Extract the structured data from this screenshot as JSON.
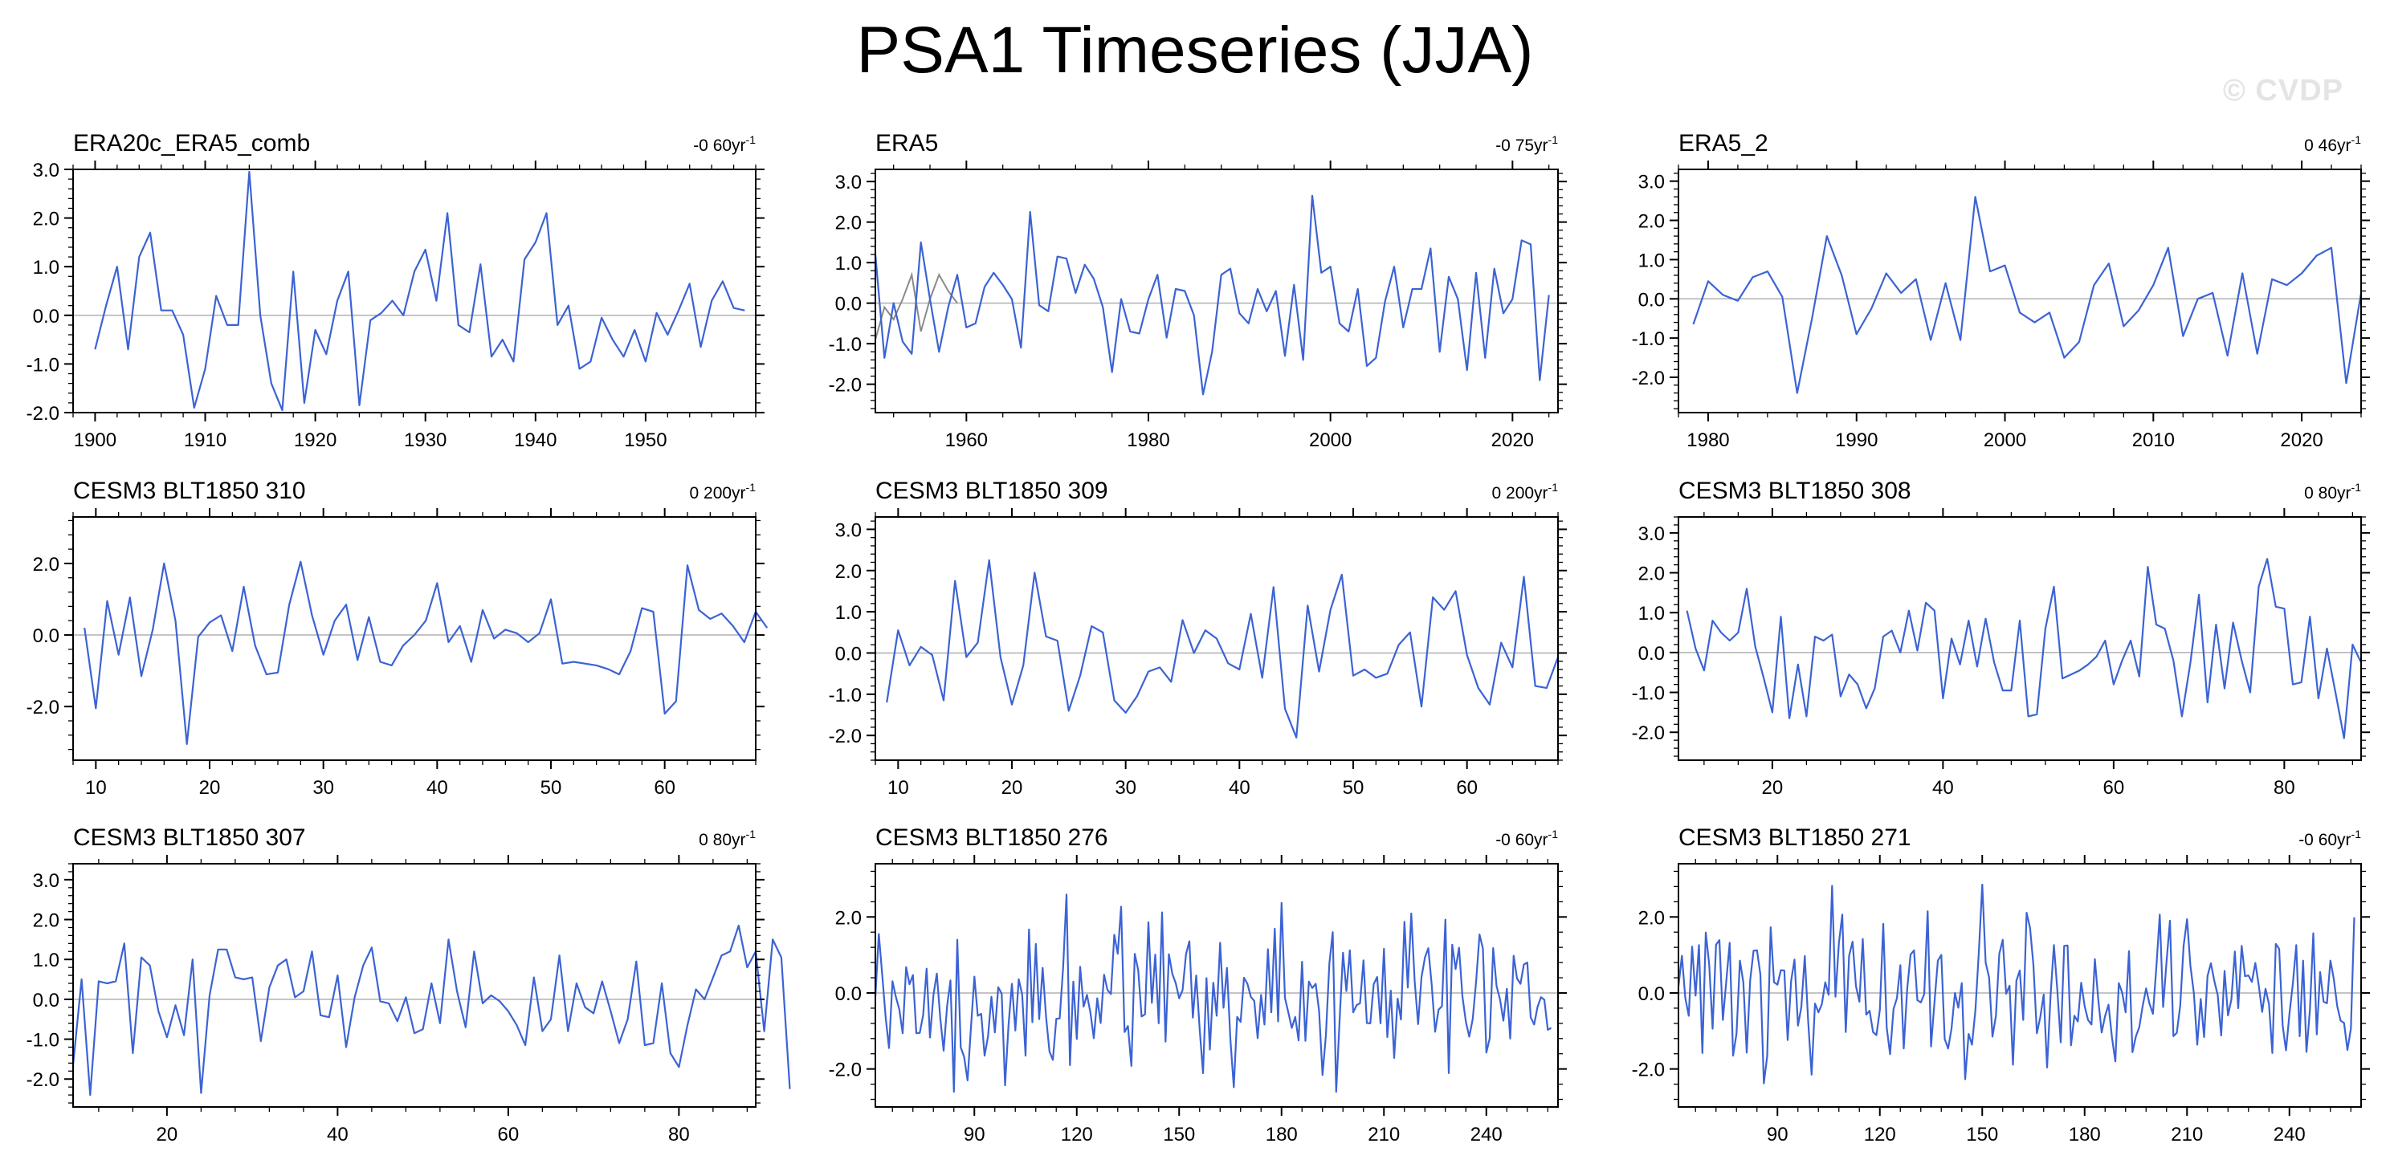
{
  "page": {
    "title": "PSA1 Timeseries (JJA)",
    "watermark": "© CVDP"
  },
  "colors": {
    "series": "#3c63d4",
    "observed_overlay": "#8a8a8a",
    "zero_line": "#b0b0b0",
    "axis": "#000000"
  },
  "chart_data": [
    {
      "type": "line",
      "title": "ERA20c_ERA5_comb",
      "trend_value": "-0 60",
      "trend_unit": "yr",
      "trend_exp": "-1",
      "xlim": [
        1898,
        1960
      ],
      "ylim": [
        -2.0,
        3.0
      ],
      "xticks": [
        1900,
        1910,
        1920,
        1930,
        1940,
        1950
      ],
      "yticks": [
        -2.0,
        -1.0,
        0.0,
        1.0,
        2.0,
        3.0
      ],
      "ytick_labels": [
        "-2.0",
        "-1.0",
        "0.0",
        "1.0",
        "2.0",
        "3.0"
      ],
      "x_start": 1900,
      "values": [
        -0.7,
        0.2,
        1.0,
        -0.7,
        1.2,
        1.7,
        0.1,
        0.1,
        -0.4,
        -1.9,
        -1.1,
        0.4,
        -0.2,
        -0.2,
        2.95,
        0.0,
        -1.4,
        -1.95,
        0.9,
        -1.8,
        -0.3,
        -0.8,
        0.3,
        0.9,
        -1.85,
        -0.1,
        0.05,
        0.3,
        0.0,
        0.9,
        1.35,
        0.3,
        2.1,
        -0.2,
        -0.35,
        1.05,
        -0.85,
        -0.5,
        -0.95,
        1.15,
        1.5,
        2.1,
        -0.2,
        0.2,
        -1.1,
        -0.95,
        -0.05,
        -0.5,
        -0.85,
        -0.3,
        -0.95,
        0.05,
        -0.4,
        0.1,
        0.65,
        -0.65,
        0.3,
        0.7,
        0.15,
        0.1
      ]
    },
    {
      "type": "line",
      "title": "ERA5",
      "trend_value": "-0 75",
      "trend_unit": "yr",
      "trend_exp": "-1",
      "xlim": [
        1950,
        2025
      ],
      "ylim": [
        -2.7,
        3.3
      ],
      "xticks": [
        1960,
        1980,
        2000,
        2020
      ],
      "yticks": [
        -2.0,
        -1.0,
        0.0,
        1.0,
        2.0,
        3.0
      ],
      "ytick_labels": [
        "-2.0",
        "-1.0",
        "0.0",
        "1.0",
        "2.0",
        "3.0"
      ],
      "x_start": 1950,
      "values": [
        1.2,
        -1.35,
        0.0,
        -0.95,
        -1.25,
        1.5,
        0.1,
        -1.2,
        -0.1,
        0.7,
        -0.6,
        -0.5,
        0.4,
        0.75,
        0.45,
        0.1,
        -1.1,
        2.25,
        -0.05,
        -0.2,
        1.15,
        1.1,
        0.25,
        0.95,
        0.6,
        -0.1,
        -1.7,
        0.1,
        -0.7,
        -0.75,
        0.1,
        0.7,
        -0.85,
        0.35,
        0.3,
        -0.3,
        -2.25,
        -1.2,
        0.7,
        0.85,
        -0.25,
        -0.5,
        0.35,
        -0.2,
        0.3,
        -1.3,
        0.45,
        -1.4,
        2.65,
        0.75,
        0.9,
        -0.5,
        -0.7,
        0.35,
        -1.55,
        -1.35,
        0.05,
        0.9,
        -0.6,
        0.35,
        0.35,
        1.35,
        -1.2,
        0.65,
        0.1,
        -1.65,
        0.75,
        -1.35,
        0.85,
        -0.25,
        0.1,
        1.55,
        1.45,
        -1.9,
        0.2
      ],
      "overlay_x_start": 1950,
      "overlay_values": [
        -0.9,
        -0.1,
        -0.4,
        0.1,
        0.7,
        -0.7,
        0.1,
        0.7,
        0.3,
        0.0
      ]
    },
    {
      "type": "line",
      "title": "ERA5_2",
      "trend_value": "0 46",
      "trend_unit": "yr",
      "trend_exp": "-1",
      "xlim": [
        1978,
        2024
      ],
      "ylim": [
        -2.9,
        3.3
      ],
      "xticks": [
        1980,
        1990,
        2000,
        2010,
        2020
      ],
      "yticks": [
        -2.0,
        -1.0,
        0.0,
        1.0,
        2.0,
        3.0
      ],
      "ytick_labels": [
        "-2.0",
        "-1.0",
        "0.0",
        "1.0",
        "2.0",
        "3.0"
      ],
      "x_start": 1979,
      "values": [
        -0.65,
        0.45,
        0.1,
        -0.05,
        0.55,
        0.7,
        0.05,
        -2.4,
        -0.5,
        1.6,
        0.6,
        -0.9,
        -0.25,
        0.65,
        0.15,
        0.5,
        -1.05,
        0.4,
        -1.05,
        2.6,
        0.7,
        0.85,
        -0.35,
        -0.6,
        -0.35,
        -1.5,
        -1.1,
        0.35,
        0.9,
        -0.7,
        -0.3,
        0.35,
        1.3,
        -0.95,
        0.0,
        0.15,
        -1.45,
        0.65,
        -1.4,
        0.5,
        0.35,
        0.65,
        1.1,
        1.3,
        -2.15,
        0.15
      ]
    },
    {
      "type": "line",
      "title": "CESM3 BLT1850 310",
      "trend_value": "0 200",
      "trend_unit": "yr",
      "trend_exp": "-1",
      "xlim": [
        8,
        68
      ],
      "ylim": [
        -3.5,
        3.3
      ],
      "xticks": [
        10,
        20,
        30,
        40,
        50,
        60
      ],
      "yticks": [
        -2.0,
        0.0,
        2.0
      ],
      "ytick_labels": [
        "-2.0",
        "0.0",
        "2.0"
      ],
      "x_start": 9,
      "values": [
        0.2,
        -2.05,
        0.95,
        -0.55,
        1.05,
        -1.15,
        0.15,
        2.0,
        0.4,
        -3.05,
        -0.05,
        0.35,
        0.55,
        -0.45,
        1.35,
        -0.3,
        -1.1,
        -1.05,
        0.85,
        2.05,
        0.55,
        -0.55,
        0.4,
        0.85,
        -0.7,
        0.5,
        -0.75,
        -0.85,
        -0.3,
        0.0,
        0.4,
        1.45,
        -0.2,
        0.25,
        -0.75,
        0.7,
        -0.1,
        0.15,
        0.05,
        -0.2,
        0.05,
        1.0,
        -0.8,
        -0.75,
        -0.8,
        -0.85,
        -0.95,
        -1.1,
        -0.45,
        0.75,
        0.65,
        -2.2,
        -1.85,
        1.95,
        0.7,
        0.45,
        0.6,
        0.25,
        -0.2,
        0.65,
        0.2
      ]
    },
    {
      "type": "line",
      "title": "CESM3 BLT1850 309",
      "trend_value": "0 200",
      "trend_unit": "yr",
      "trend_exp": "-1",
      "xlim": [
        8,
        68
      ],
      "ylim": [
        -2.6,
        3.3
      ],
      "xticks": [
        10,
        20,
        30,
        40,
        50,
        60
      ],
      "yticks": [
        -2.0,
        -1.0,
        0.0,
        1.0,
        2.0,
        3.0
      ],
      "ytick_labels": [
        "-2.0",
        "-1.0",
        "0.0",
        "1.0",
        "2.0",
        "3.0"
      ],
      "x_start": 9,
      "values": [
        -1.2,
        0.55,
        -0.3,
        0.15,
        -0.05,
        -1.15,
        1.75,
        -0.1,
        0.25,
        2.25,
        -0.1,
        -1.25,
        -0.3,
        1.95,
        0.4,
        0.3,
        -1.4,
        -0.55,
        0.65,
        0.5,
        -1.15,
        -1.45,
        -1.05,
        -0.45,
        -0.35,
        -0.7,
        0.8,
        0.0,
        0.55,
        0.35,
        -0.25,
        -0.4,
        0.95,
        -0.6,
        1.6,
        -1.35,
        -2.05,
        1.15,
        -0.45,
        1.05,
        1.9,
        -0.55,
        -0.4,
        -0.6,
        -0.5,
        0.2,
        0.5,
        -1.3,
        1.35,
        1.05,
        1.5,
        -0.05,
        -0.85,
        -1.25,
        0.25,
        -0.35,
        1.85,
        -0.8,
        -0.85,
        -0.1
      ]
    },
    {
      "type": "line",
      "title": "CESM3 BLT1850 308",
      "trend_value": "0 80",
      "trend_unit": "yr",
      "trend_exp": "-1",
      "xlim": [
        9,
        89
      ],
      "ylim": [
        -2.7,
        3.4
      ],
      "xticks": [
        20,
        40,
        60,
        80
      ],
      "yticks": [
        -2.0,
        -1.0,
        0.0,
        1.0,
        2.0,
        3.0
      ],
      "ytick_labels": [
        "-2.0",
        "-1.0",
        "0.0",
        "1.0",
        "2.0",
        "3.0"
      ],
      "x_start": 10,
      "values": [
        1.05,
        0.1,
        -0.45,
        0.8,
        0.5,
        0.3,
        0.5,
        1.6,
        0.15,
        -0.65,
        -1.5,
        0.9,
        -1.65,
        -0.3,
        -1.6,
        0.4,
        0.3,
        0.45,
        -1.1,
        -0.55,
        -0.8,
        -1.4,
        -0.9,
        0.4,
        0.55,
        0.0,
        1.05,
        0.05,
        1.25,
        1.05,
        -1.15,
        0.35,
        -0.3,
        0.8,
        -0.35,
        0.85,
        -0.25,
        -0.95,
        -0.95,
        0.8,
        -1.6,
        -1.55,
        0.6,
        1.65,
        -0.65,
        -0.55,
        -0.45,
        -0.3,
        -0.1,
        0.3,
        -0.8,
        -0.2,
        0.3,
        -0.6,
        2.15,
        0.7,
        0.6,
        -0.2,
        -1.6,
        -0.25,
        1.45,
        -1.25,
        0.7,
        -0.9,
        0.75,
        -0.2,
        -1.0,
        1.65,
        2.35,
        1.15,
        1.1,
        -0.8,
        -0.75,
        0.9,
        -1.15,
        0.1,
        -1.0,
        -2.15,
        0.2,
        -0.25
      ]
    },
    {
      "type": "line",
      "title": "CESM3 BLT1850 307",
      "trend_value": "0 80",
      "trend_unit": "yr",
      "trend_exp": "-1",
      "xlim": [
        9,
        89
      ],
      "ylim": [
        -2.7,
        3.4
      ],
      "xticks": [
        20,
        40,
        60,
        80
      ],
      "yticks": [
        -2.0,
        -1.0,
        0.0,
        1.0,
        2.0,
        3.0
      ],
      "ytick_labels": [
        "-2.0",
        "-1.0",
        "0.0",
        "1.0",
        "2.0",
        "3.0"
      ],
      "x_start": 9,
      "values": [
        -1.65,
        0.5,
        -2.4,
        0.45,
        0.4,
        0.45,
        1.4,
        -1.35,
        1.05,
        0.85,
        -0.3,
        -0.95,
        -0.15,
        -0.9,
        1.0,
        -2.35,
        0.1,
        1.25,
        1.25,
        0.55,
        0.5,
        0.55,
        -1.05,
        0.3,
        0.85,
        1.0,
        0.05,
        0.2,
        1.2,
        -0.4,
        -0.45,
        0.6,
        -1.2,
        0.05,
        0.85,
        1.3,
        -0.05,
        -0.1,
        -0.55,
        0.05,
        -0.85,
        -0.75,
        0.4,
        -0.6,
        1.5,
        0.2,
        -0.7,
        1.2,
        -0.1,
        0.1,
        -0.05,
        -0.3,
        -0.65,
        -1.15,
        0.55,
        -0.8,
        -0.5,
        1.1,
        -0.8,
        0.4,
        -0.2,
        -0.35,
        0.45,
        -0.3,
        -1.1,
        -0.5,
        0.95,
        -1.15,
        -1.1,
        0.4,
        -1.35,
        -1.7,
        -0.65,
        0.25,
        0.0,
        0.55,
        1.1,
        1.2,
        1.85,
        0.8,
        1.2,
        -0.8,
        1.5,
        1.05,
        -2.25
      ]
    },
    {
      "type": "line",
      "title": "CESM3 BLT1850 276",
      "trend_value": "-0 60",
      "trend_unit": "yr",
      "trend_exp": "-1",
      "xlim": [
        61,
        261
      ],
      "ylim": [
        -3.0,
        3.4
      ],
      "xticks": [
        90,
        120,
        150,
        180,
        210,
        240
      ],
      "yticks": [
        -2.0,
        0.0,
        2.0
      ],
      "ytick_labels": [
        "-2.0",
        "0.0",
        "2.0"
      ],
      "x_start": 61,
      "generator": {
        "count": 199,
        "seed": 276,
        "amplitude": 1.1,
        "min": -2.6,
        "max": 2.8
      }
    },
    {
      "type": "line",
      "title": "CESM3 BLT1850 271",
      "trend_value": "-0 60",
      "trend_unit": "yr",
      "trend_exp": "-1",
      "xlim": [
        61,
        261
      ],
      "ylim": [
        -3.0,
        3.4
      ],
      "xticks": [
        90,
        120,
        150,
        180,
        210,
        240
      ],
      "yticks": [
        -2.0,
        0.0,
        2.0
      ],
      "ytick_labels": [
        "-2.0",
        "0.0",
        "2.0"
      ],
      "x_start": 61,
      "generator": {
        "count": 199,
        "seed": 271,
        "amplitude": 1.1,
        "min": -2.7,
        "max": 2.85
      }
    }
  ]
}
